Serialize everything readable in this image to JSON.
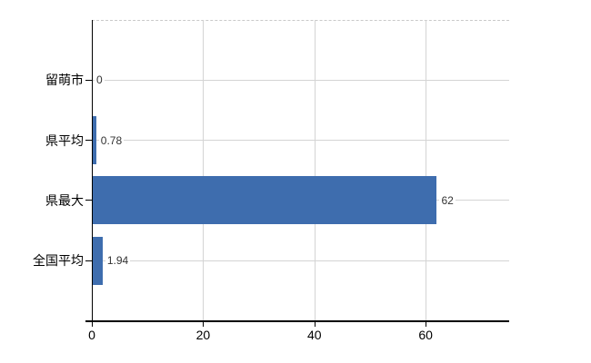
{
  "chart_data": {
    "type": "bar",
    "orientation": "horizontal",
    "title": "",
    "categories": [
      "留萌市",
      "県平均",
      "県最大",
      "全国平均"
    ],
    "values": [
      0,
      0.78,
      62,
      1.94
    ],
    "value_labels": [
      "0",
      "0.78",
      "62",
      "1.94"
    ],
    "xlabel": "",
    "ylabel": "",
    "xlim": [
      0,
      75
    ],
    "xticks": [
      0,
      20,
      40,
      60
    ],
    "xtick_labels": [
      "0",
      "20",
      "40",
      "60"
    ],
    "grid": true,
    "legend": false,
    "colors": {
      "bar": "#3e6dae",
      "grid": "#d4d4d4",
      "plot_border": "#c9c9c9",
      "axis": "#000000",
      "value_label": "#333333",
      "category_label": "#000000",
      "tick_label": "#000000",
      "background": "#ffffff"
    }
  }
}
